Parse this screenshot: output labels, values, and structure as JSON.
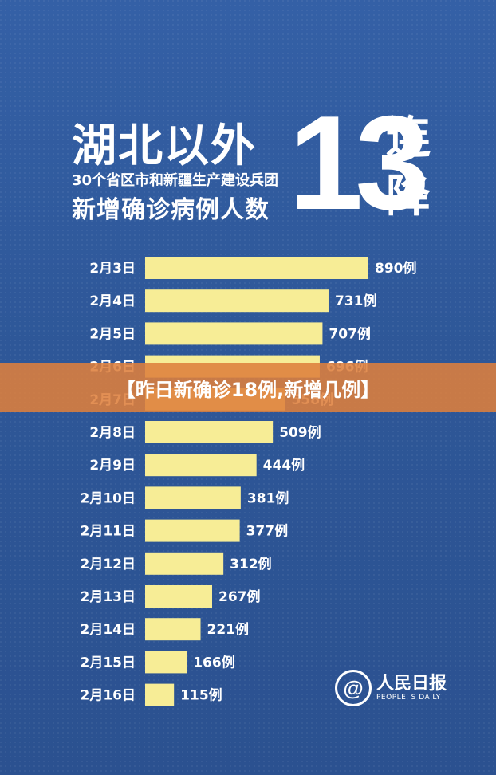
{
  "header": {
    "title_main": "湖北以外",
    "subtitle_line1": "30个省区市和新疆生产建设兵团",
    "subtitle_line2": "新增确诊病例人数",
    "big_number": "13",
    "big_suffix": "连降"
  },
  "banner": {
    "text": "【昨日新确诊18例,新增几例】"
  },
  "logo": {
    "cn": "人民日报",
    "en": "PEOPLE' S DAILY"
  },
  "colors": {
    "background": "#2f5494",
    "bar": "#f7ed96",
    "banner": "#de803c",
    "text": "#ffffff"
  },
  "chart_data": {
    "type": "bar",
    "orientation": "horizontal",
    "categories": [
      "2月3日",
      "2月4日",
      "2月5日",
      "2月6日",
      "2月7日",
      "2月8日",
      "2月9日",
      "2月10日",
      "2月11日",
      "2月12日",
      "2月13日",
      "2月14日",
      "2月15日",
      "2月16日"
    ],
    "values": [
      890,
      731,
      707,
      696,
      558,
      509,
      444,
      381,
      377,
      312,
      267,
      221,
      166,
      115
    ],
    "value_labels": [
      "890例",
      "731例",
      "707例",
      "696例",
      "558例",
      "509例",
      "444例",
      "381例",
      "377例",
      "312例",
      "267例",
      "221例",
      "166例",
      "115例"
    ],
    "title": "湖北以外 30个省区市和新疆生产建设兵团 新增确诊病例人数",
    "xlim": [
      0,
      890
    ],
    "grid": false,
    "legend": "none"
  }
}
